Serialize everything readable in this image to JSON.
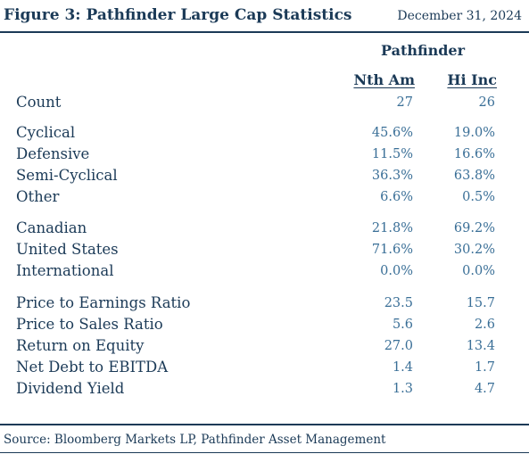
{
  "header": {
    "title": "Figure 3: Pathfinder Large Cap Statistics",
    "date": "December 31, 2024"
  },
  "table": {
    "group_header": "Pathfinder",
    "columns": [
      "Nth Am",
      "Hi Inc"
    ],
    "rows": [
      {
        "label": "Count",
        "nth_am": "27",
        "hi_inc": "26"
      },
      {
        "label": "Cyclical",
        "nth_am": "45.6%",
        "hi_inc": "19.0%"
      },
      {
        "label": "Defensive",
        "nth_am": "11.5%",
        "hi_inc": "16.6%"
      },
      {
        "label": "Semi-Cyclical",
        "nth_am": "36.3%",
        "hi_inc": "63.8%"
      },
      {
        "label": "Other",
        "nth_am": "6.6%",
        "hi_inc": "0.5%"
      },
      {
        "label": "Canadian",
        "nth_am": "21.8%",
        "hi_inc": "69.2%"
      },
      {
        "label": "United States",
        "nth_am": "71.6%",
        "hi_inc": "30.2%"
      },
      {
        "label": "International",
        "nth_am": "0.0%",
        "hi_inc": "0.0%"
      },
      {
        "label": "Price to Earnings Ratio",
        "nth_am": "23.5",
        "hi_inc": "15.7"
      },
      {
        "label": "Price to Sales Ratio",
        "nth_am": "5.6",
        "hi_inc": "2.6"
      },
      {
        "label": "Return on Equity",
        "nth_am": "27.0",
        "hi_inc": "13.4"
      },
      {
        "label": "Net Debt to EBITDA",
        "nth_am": "1.4",
        "hi_inc": "1.7"
      },
      {
        "label": "Dividend Yield",
        "nth_am": "1.3",
        "hi_inc": "4.7"
      }
    ]
  },
  "footer": {
    "source": "Source: Bloomberg Markets LP, Pathfinder Asset Management"
  },
  "colors": {
    "primary": "#1b3a57",
    "value": "#3a6f97"
  }
}
